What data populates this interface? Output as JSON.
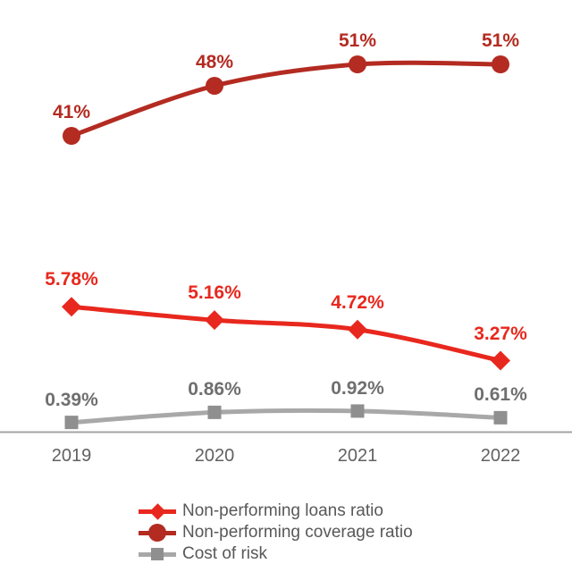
{
  "chart_data": {
    "type": "line",
    "title": "",
    "categories": [
      "2019",
      "2020",
      "2021",
      "2022"
    ],
    "series": [
      {
        "name": "Non-performing loans ratio",
        "values": [
          5.78,
          5.16,
          4.72,
          3.27
        ],
        "data_labels": [
          "5.78%",
          "5.16%",
          "4.72%",
          "3.27%"
        ],
        "color": "#e8281e",
        "marker": "diamond",
        "axis": "left"
      },
      {
        "name": "Non-performing coverage ratio",
        "values": [
          41,
          48,
          51,
          51
        ],
        "data_labels": [
          "41%",
          "48%",
          "51%",
          "51%"
        ],
        "color": "#b32b21",
        "marker": "circle",
        "axis": "right"
      },
      {
        "name": "Cost of risk",
        "values": [
          0.39,
          0.86,
          0.92,
          0.61
        ],
        "data_labels": [
          "0.39%",
          "0.86%",
          "0.92%",
          "0.61%"
        ],
        "color": "#a8a8a8",
        "marker_color": "#8f8f8f",
        "label_color": "#6f6f6f",
        "marker": "square",
        "axis": "left"
      }
    ],
    "x_axis": {
      "line_color": "#a4a4a4",
      "label_color": "#616161"
    },
    "legend_position": "bottom",
    "grid": false
  }
}
